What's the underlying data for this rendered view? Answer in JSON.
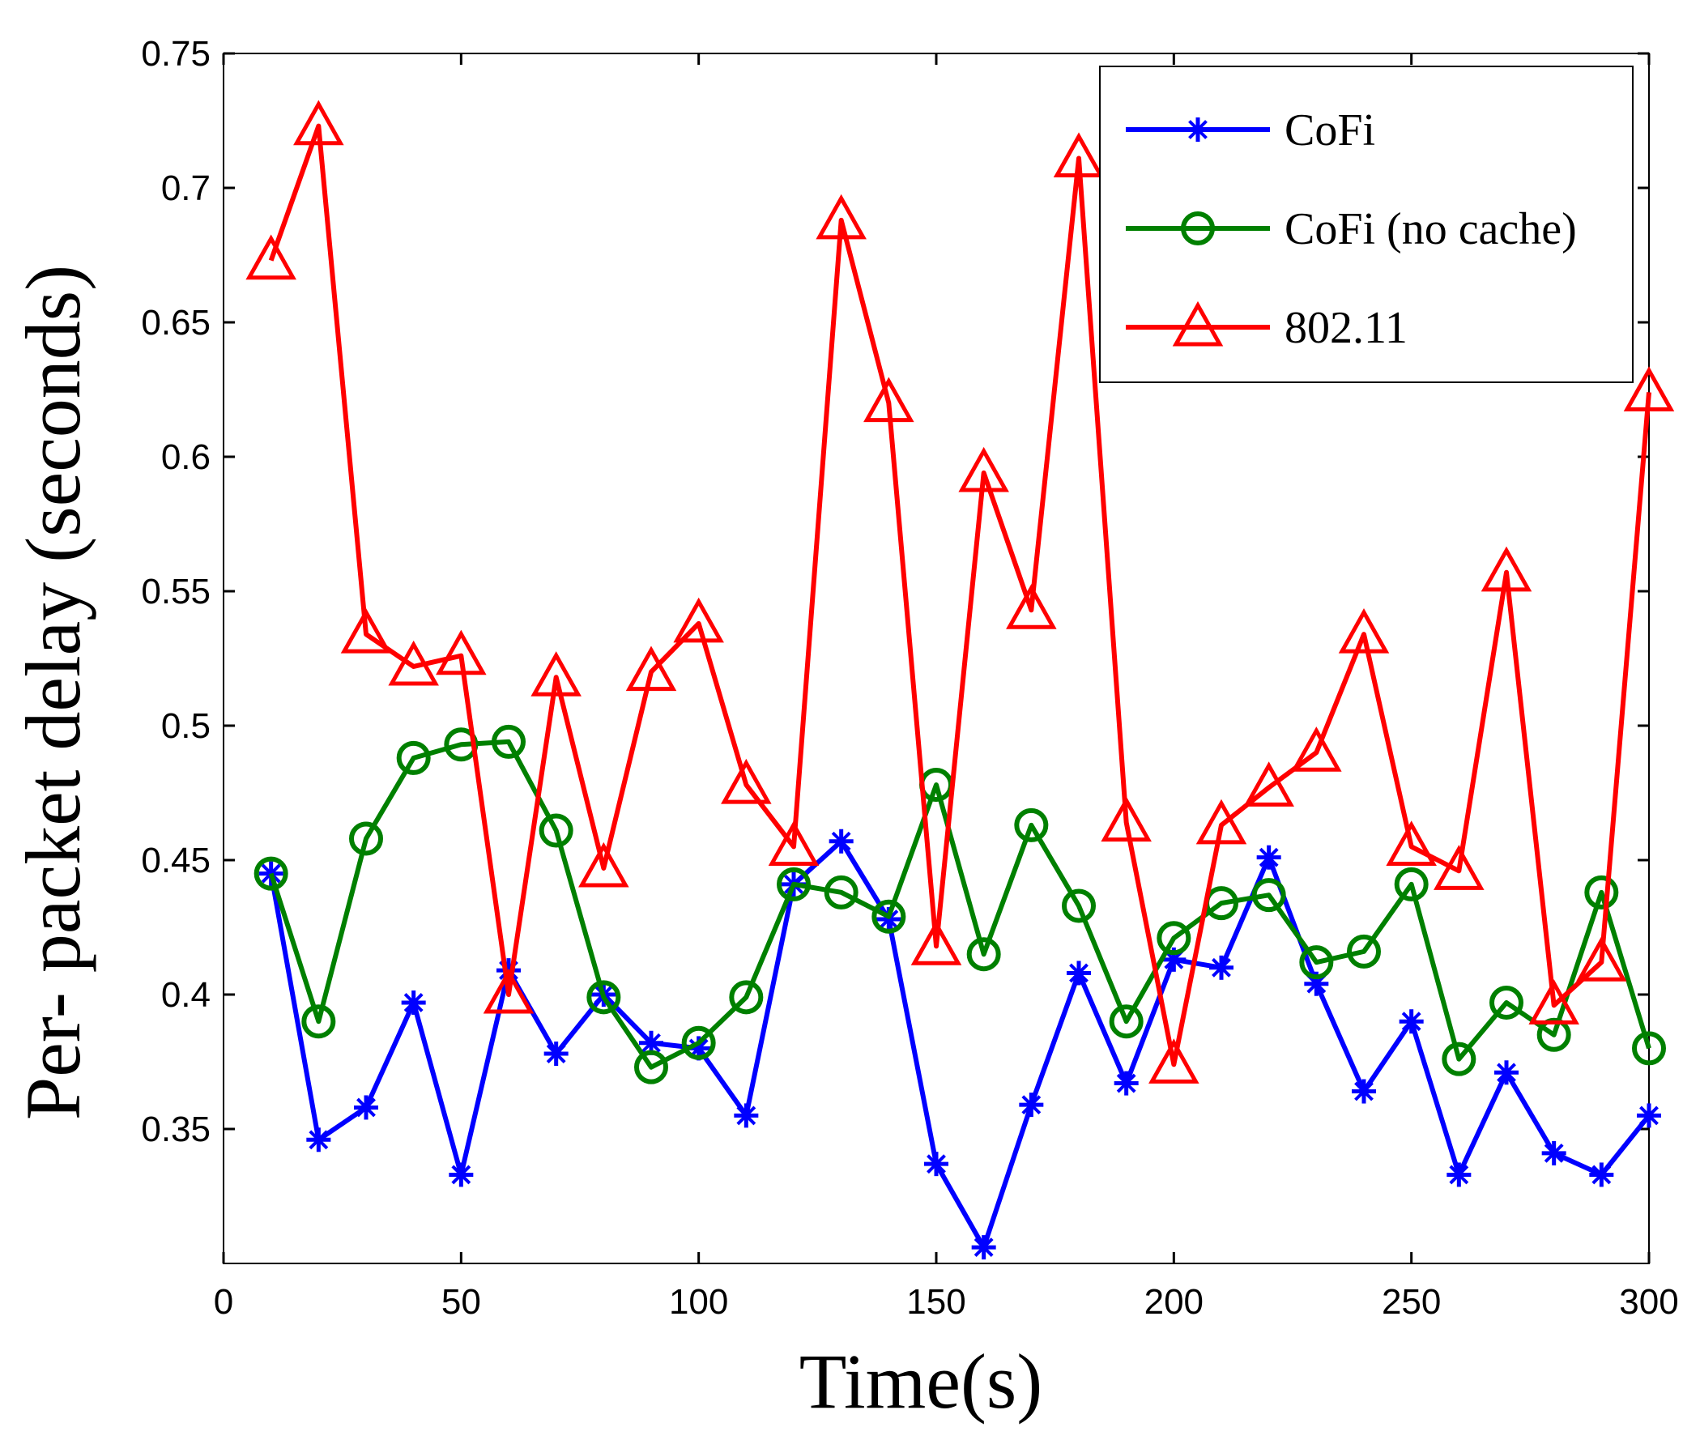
{
  "chart_data": {
    "type": "line",
    "title": "",
    "xlabel": "Time(s)",
    "ylabel": "Per- packet delay (seconds)",
    "xlim": [
      0,
      300
    ],
    "ylim": [
      0.3,
      0.75
    ],
    "xticks": [
      0,
      50,
      100,
      150,
      200,
      250,
      300
    ],
    "yticks": [
      0.35,
      0.4,
      0.45,
      0.5,
      0.55,
      0.6,
      0.65,
      0.7,
      0.75
    ],
    "x": [
      10,
      20,
      30,
      40,
      50,
      60,
      70,
      80,
      90,
      100,
      110,
      120,
      130,
      140,
      150,
      160,
      170,
      180,
      190,
      200,
      210,
      220,
      230,
      240,
      250,
      260,
      270,
      280,
      290,
      300
    ],
    "series": [
      {
        "name": "CoFi",
        "color": "#0000ff",
        "marker": "star",
        "values": [
          0.445,
          0.346,
          0.358,
          0.397,
          0.333,
          0.409,
          0.378,
          0.4,
          0.382,
          0.38,
          0.355,
          0.441,
          0.457,
          0.428,
          0.337,
          0.306,
          0.359,
          0.408,
          0.367,
          0.413,
          0.41,
          0.451,
          0.404,
          0.364,
          0.39,
          0.333,
          0.371,
          0.341,
          0.333,
          0.355
        ]
      },
      {
        "name": "CoFi (no cache)",
        "color": "#008000",
        "marker": "circle",
        "values": [
          0.445,
          0.39,
          0.458,
          0.488,
          0.493,
          0.494,
          0.461,
          0.399,
          0.373,
          0.382,
          0.399,
          0.441,
          0.438,
          0.429,
          0.478,
          0.415,
          0.463,
          0.433,
          0.39,
          0.421,
          0.434,
          0.437,
          0.412,
          0.416,
          0.441,
          0.376,
          0.397,
          0.385,
          0.438,
          0.38
        ]
      },
      {
        "name": "802.11",
        "color": "#ff0000",
        "marker": "triangle",
        "values": [
          0.673,
          0.723,
          0.534,
          0.522,
          0.526,
          0.4,
          0.518,
          0.447,
          0.52,
          0.538,
          0.478,
          0.455,
          0.688,
          0.62,
          0.418,
          0.594,
          0.543,
          0.711,
          0.464,
          0.374,
          0.463,
          0.477,
          0.49,
          0.534,
          0.455,
          0.446,
          0.557,
          0.396,
          0.412,
          0.624
        ]
      }
    ],
    "legend": {
      "placement": "top-right"
    },
    "grid": false
  }
}
